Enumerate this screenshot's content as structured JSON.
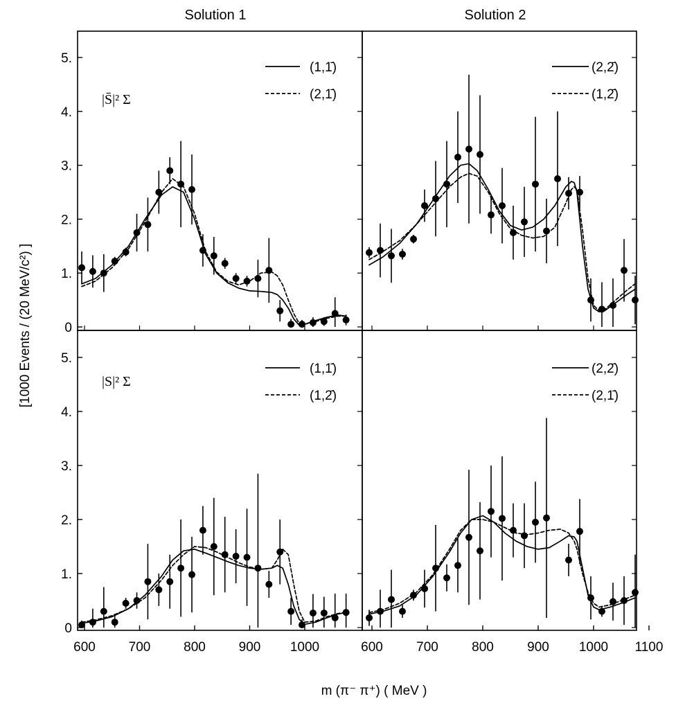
{
  "figure": {
    "xlabel": "m (π⁻ π⁺)  ( MeV )",
    "ylabel": "[1000 Events / (20 MeV/c²) ]",
    "column_titles": [
      "Solution 1",
      "Solution 2"
    ]
  },
  "chart_data": [
    {
      "type": "scatter",
      "panel": "top-left",
      "column_title": "Solution 1",
      "label": "|S̄|² Σ",
      "xlim": [
        585,
        1085
      ],
      "ylim": [
        0,
        5.5
      ],
      "yticks": [
        "0",
        "1.",
        "2.",
        "3.",
        "4.",
        "5."
      ],
      "xticks": [],
      "legend": [
        {
          "text": "(1,1̄)",
          "style": "solid"
        },
        {
          "text": "(2,1̄)",
          "style": "dashed"
        }
      ],
      "x": [
        595,
        615,
        635,
        655,
        675,
        695,
        715,
        735,
        755,
        775,
        795,
        815,
        835,
        855,
        875,
        895,
        915,
        935,
        955,
        975,
        995,
        1015,
        1035,
        1055,
        1075
      ],
      "y": [
        1.1,
        1.03,
        1.0,
        1.22,
        1.39,
        1.75,
        1.9,
        2.5,
        2.9,
        2.65,
        2.55,
        1.42,
        1.32,
        1.18,
        0.9,
        0.85,
        0.9,
        1.05,
        0.3,
        0.05,
        0.05,
        0.08,
        0.1,
        0.25,
        0.13
      ],
      "yerr": [
        0.3,
        0.3,
        0.35,
        0.08,
        0.08,
        0.35,
        0.5,
        0.4,
        0.25,
        0.8,
        0.65,
        0.3,
        0.35,
        0.1,
        0.1,
        0.1,
        0.35,
        0.6,
        0.2,
        0.1,
        0.08,
        0.1,
        0.08,
        0.3,
        0.1
      ],
      "series": [
        {
          "name": "(1,1̄)",
          "style": "solid",
          "x": [
            595,
            620,
            650,
            680,
            710,
            740,
            760,
            780,
            800,
            820,
            840,
            860,
            880,
            900,
            920,
            940,
            950,
            960,
            970,
            980,
            990,
            1000,
            1020,
            1040,
            1060,
            1075
          ],
          "y": [
            0.8,
            0.9,
            1.15,
            1.5,
            2.0,
            2.45,
            2.6,
            2.5,
            2.0,
            1.35,
            1.0,
            0.82,
            0.72,
            0.67,
            0.66,
            0.64,
            0.6,
            0.5,
            0.35,
            0.15,
            0.03,
            0.05,
            0.12,
            0.18,
            0.22,
            0.2
          ]
        },
        {
          "name": "(2,1̄)",
          "style": "dashed",
          "x": [
            595,
            620,
            650,
            680,
            710,
            740,
            760,
            780,
            800,
            820,
            840,
            860,
            880,
            900,
            920,
            940,
            950,
            960,
            970,
            980,
            990,
            1000,
            1020,
            1040,
            1060,
            1075
          ],
          "y": [
            0.75,
            0.85,
            1.1,
            1.45,
            1.95,
            2.5,
            2.75,
            2.6,
            2.1,
            1.4,
            1.02,
            0.85,
            0.78,
            0.85,
            1.0,
            1.02,
            0.95,
            0.78,
            0.5,
            0.25,
            0.06,
            0.05,
            0.1,
            0.16,
            0.2,
            0.2
          ]
        }
      ]
    },
    {
      "type": "scatter",
      "panel": "top-right",
      "column_title": "Solution 2",
      "label": "",
      "xlim": [
        585,
        1085
      ],
      "ylim": [
        0,
        5.5
      ],
      "yticks": [],
      "xticks": [],
      "legend": [
        {
          "text": "(2,2̄)",
          "style": "solid"
        },
        {
          "text": "(1,2̄)",
          "style": "dashed"
        }
      ],
      "x": [
        595,
        615,
        635,
        655,
        675,
        695,
        715,
        735,
        755,
        775,
        795,
        815,
        835,
        855,
        875,
        895,
        915,
        935,
        955,
        975,
        995,
        1015,
        1035,
        1055,
        1075
      ],
      "y": [
        1.38,
        1.42,
        1.32,
        1.35,
        1.63,
        2.25,
        2.38,
        2.65,
        3.15,
        3.3,
        3.2,
        2.08,
        2.25,
        1.75,
        1.95,
        2.65,
        1.78,
        2.75,
        2.48,
        2.5,
        0.5,
        0.33,
        0.4,
        1.05,
        0.5
      ],
      "yerr": [
        0.1,
        0.5,
        0.5,
        0.1,
        0.08,
        0.3,
        0.7,
        0.8,
        0.85,
        1.38,
        1.1,
        0.35,
        0.7,
        0.5,
        0.65,
        1.25,
        0.6,
        1.25,
        0.3,
        0.3,
        0.4,
        0.5,
        0.5,
        0.58,
        0.45
      ],
      "series": [
        {
          "name": "(2,2̄)",
          "style": "solid",
          "x": [
            595,
            620,
            650,
            680,
            710,
            740,
            760,
            775,
            790,
            810,
            830,
            850,
            870,
            890,
            910,
            930,
            950,
            960,
            965,
            970,
            980,
            990,
            1000,
            1010,
            1020,
            1040,
            1060,
            1075
          ],
          "y": [
            1.15,
            1.3,
            1.55,
            1.9,
            2.35,
            2.8,
            3.0,
            3.03,
            2.9,
            2.55,
            2.15,
            1.88,
            1.8,
            1.85,
            2.0,
            2.25,
            2.6,
            2.7,
            2.68,
            2.5,
            1.5,
            0.7,
            0.35,
            0.28,
            0.3,
            0.45,
            0.6,
            0.7
          ]
        },
        {
          "name": "(1,2̄)",
          "style": "dashed",
          "x": [
            595,
            620,
            650,
            680,
            710,
            740,
            760,
            775,
            790,
            810,
            830,
            850,
            870,
            890,
            910,
            930,
            950,
            960,
            965,
            970,
            980,
            990,
            1000,
            1010,
            1020,
            1040,
            1060,
            1075
          ],
          "y": [
            1.25,
            1.4,
            1.6,
            1.9,
            2.25,
            2.6,
            2.78,
            2.85,
            2.8,
            2.5,
            2.1,
            1.82,
            1.7,
            1.65,
            1.68,
            1.85,
            2.3,
            2.55,
            2.6,
            2.55,
            1.8,
            0.9,
            0.4,
            0.3,
            0.32,
            0.5,
            0.68,
            0.8
          ]
        }
      ]
    },
    {
      "type": "scatter",
      "panel": "bottom-left",
      "column_title": "",
      "label": "|S|² Σ",
      "xlim": [
        585,
        1085
      ],
      "ylim": [
        0,
        5.5
      ],
      "yticks": [
        "0",
        "1.",
        "2.",
        "3.",
        "4.",
        "5."
      ],
      "xticks": [
        "600",
        "700",
        "800",
        "900",
        "1000"
      ],
      "legend": [
        {
          "text": "(1,1̄)",
          "style": "solid"
        },
        {
          "text": "(1,2̄)",
          "style": "dashed"
        }
      ],
      "x": [
        595,
        615,
        635,
        655,
        675,
        695,
        715,
        735,
        755,
        775,
        795,
        815,
        835,
        855,
        875,
        895,
        915,
        935,
        955,
        975,
        995,
        1015,
        1035,
        1055,
        1075
      ],
      "y": [
        0.05,
        0.1,
        0.3,
        0.1,
        0.45,
        0.5,
        0.85,
        0.7,
        0.85,
        1.1,
        0.98,
        1.8,
        1.5,
        1.35,
        1.32,
        1.3,
        1.1,
        0.8,
        1.4,
        0.3,
        0.05,
        0.27,
        0.27,
        0.18,
        0.28
      ],
      "yerr": [
        0.08,
        0.25,
        0.45,
        0.12,
        0.1,
        0.15,
        0.7,
        0.3,
        0.5,
        0.9,
        0.7,
        0.45,
        0.9,
        0.7,
        0.5,
        0.9,
        1.75,
        0.25,
        0.6,
        0.25,
        0.1,
        0.35,
        0.3,
        0.45,
        0.35
      ],
      "series": [
        {
          "name": "(1,1̄)",
          "style": "solid",
          "x": [
            595,
            620,
            650,
            680,
            710,
            740,
            760,
            780,
            800,
            820,
            840,
            860,
            880,
            900,
            920,
            940,
            950,
            960,
            970,
            980,
            990,
            1000,
            1020,
            1040,
            1060,
            1075
          ],
          "y": [
            0.08,
            0.12,
            0.2,
            0.35,
            0.6,
            0.95,
            1.25,
            1.42,
            1.45,
            1.38,
            1.3,
            1.22,
            1.15,
            1.1,
            1.08,
            1.1,
            1.15,
            1.1,
            0.8,
            0.4,
            0.15,
            0.06,
            0.1,
            0.18,
            0.25,
            0.28
          ]
        },
        {
          "name": "(1,2̄)",
          "style": "dashed",
          "x": [
            595,
            620,
            650,
            680,
            710,
            740,
            760,
            780,
            800,
            820,
            840,
            860,
            880,
            900,
            920,
            940,
            950,
            960,
            970,
            980,
            990,
            1000,
            1020,
            1040,
            1060,
            1075
          ],
          "y": [
            0.1,
            0.14,
            0.22,
            0.35,
            0.55,
            0.88,
            1.15,
            1.35,
            1.5,
            1.48,
            1.4,
            1.3,
            1.2,
            1.12,
            1.08,
            1.1,
            1.25,
            1.45,
            1.35,
            0.8,
            0.3,
            0.1,
            0.12,
            0.2,
            0.26,
            0.28
          ]
        }
      ]
    },
    {
      "type": "scatter",
      "panel": "bottom-right",
      "column_title": "",
      "label": "",
      "xlim": [
        585,
        1105
      ],
      "ylim": [
        0,
        5.5
      ],
      "yticks": [],
      "xticks": [
        "600",
        "700",
        "800",
        "900",
        "1000",
        "1100"
      ],
      "legend": [
        {
          "text": "(2,2̄)",
          "style": "solid"
        },
        {
          "text": "(2,1̄)",
          "style": "dashed"
        }
      ],
      "x": [
        595,
        615,
        635,
        655,
        675,
        695,
        715,
        735,
        755,
        775,
        795,
        815,
        835,
        855,
        875,
        895,
        915,
        955,
        975,
        995,
        1015,
        1035,
        1055,
        1075
      ],
      "y": [
        0.18,
        0.3,
        0.52,
        0.3,
        0.6,
        0.72,
        1.1,
        0.92,
        1.15,
        1.67,
        1.42,
        2.15,
        2.02,
        1.8,
        1.7,
        1.95,
        2.03,
        1.25,
        1.78,
        0.55,
        0.3,
        0.48,
        0.5,
        0.65
      ],
      "yerr": [
        0.15,
        0.4,
        0.55,
        0.12,
        0.1,
        0.35,
        0.8,
        0.25,
        0.5,
        1.25,
        0.9,
        0.85,
        1.15,
        0.5,
        0.6,
        0.75,
        1.85,
        0.3,
        0.6,
        0.4,
        0.1,
        0.35,
        0.45,
        0.7
      ],
      "series": [
        {
          "name": "(2,2̄)",
          "style": "solid",
          "x": [
            595,
            620,
            650,
            680,
            710,
            740,
            760,
            780,
            800,
            820,
            840,
            860,
            880,
            900,
            920,
            940,
            955,
            965,
            970,
            980,
            990,
            1000,
            1010,
            1030,
            1050,
            1075
          ],
          "y": [
            0.25,
            0.3,
            0.4,
            0.6,
            0.95,
            1.4,
            1.75,
            2.0,
            2.07,
            1.95,
            1.75,
            1.6,
            1.5,
            1.45,
            1.48,
            1.6,
            1.7,
            1.68,
            1.6,
            1.1,
            0.6,
            0.38,
            0.33,
            0.38,
            0.45,
            0.55
          ]
        },
        {
          "name": "(2,1̄)",
          "style": "dashed",
          "x": [
            595,
            620,
            650,
            680,
            710,
            740,
            760,
            780,
            800,
            820,
            840,
            860,
            880,
            900,
            920,
            940,
            955,
            965,
            970,
            980,
            990,
            1000,
            1010,
            1030,
            1050,
            1075
          ],
          "y": [
            0.28,
            0.33,
            0.45,
            0.65,
            0.98,
            1.45,
            1.8,
            2.0,
            2.0,
            1.95,
            1.85,
            1.75,
            1.72,
            1.75,
            1.8,
            1.82,
            1.75,
            1.6,
            1.45,
            1.0,
            0.65,
            0.45,
            0.38,
            0.42,
            0.5,
            0.6
          ]
        }
      ]
    }
  ]
}
